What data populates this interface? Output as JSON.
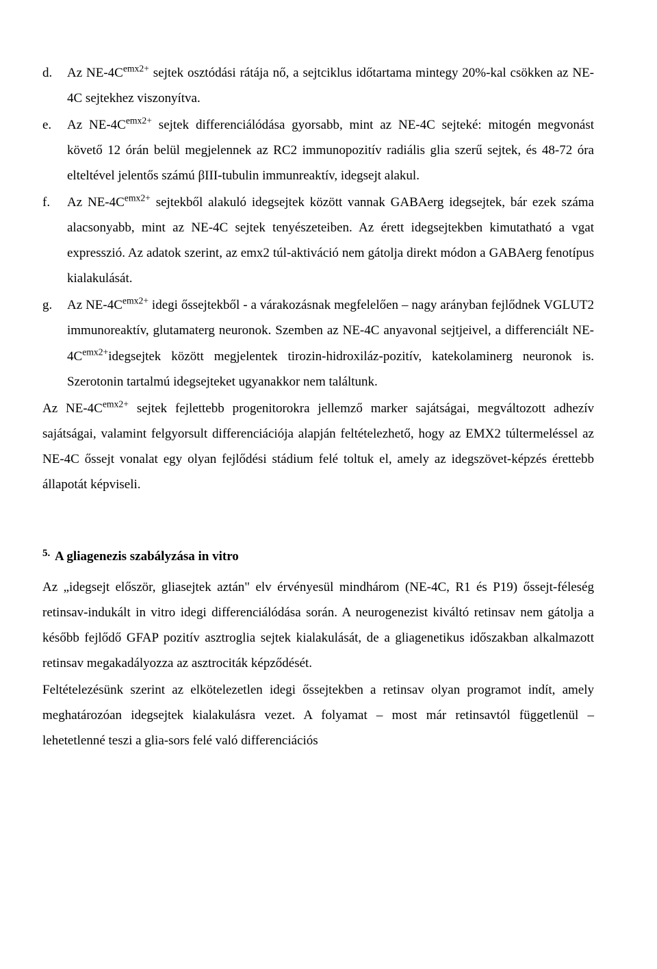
{
  "items": {
    "d": {
      "marker": "d.",
      "text": "Az NE-4C<sup>emx2+</sup> sejtek osztódási rátája nő, a sejtciklus időtartama mintegy 20%-kal csökken az NE-4C sejtekhez viszonyítva."
    },
    "e": {
      "marker": "e.",
      "text": "Az NE-4C<sup>emx2+</sup> sejtek differenciálódása gyorsabb, mint az NE-4C sejteké: mitogén megvonást követő 12 órán belül megjelennek az RC2 immunopozitív radiális glia szerű sejtek, és 48-72 óra elteltével jelentős számú βIII-tubulin immunreaktív, idegsejt alakul."
    },
    "f": {
      "marker": "f.",
      "text": "Az NE-4C<sup>emx2+</sup> sejtekből alakuló idegsejtek között vannak GABAerg idegsejtek, bár ezek száma alacsonyabb, mint az NE-4C sejtek tenyészeteiben. Az érett idegsejtekben kimutatható a vgat expresszió. Az adatok szerint, az emx2 túl-aktiváció nem gátolja direkt módon a GABAerg fenotípus kialakulását."
    },
    "g": {
      "marker": "g.",
      "text": "Az NE-4C<sup>emx2+</sup> idegi őssejtekből - a várakozásnak megfelelően – nagy arányban fejlődnek VGLUT2 immunoreaktív, glutamaterg neuronok. Szemben az NE-4C anyavonal sejtjeivel, a differenciált NE-4C<sup>emx2+</sup>idegsejtek között megjelentek tirozin-hidroxiláz-pozitív, katekolaminerg neuronok is. Szerotonin tartalmú idegsejteket ugyanakkor nem találtunk."
    }
  },
  "summary": "Az NE-4C<sup>emx2+</sup> sejtek fejlettebb progenitorokra jellemző marker sajátságai, megváltozott adhezív sajátságai, valamint felgyorsult differenciációja alapján feltételezhető, hogy az EMX2 túltermeléssel az NE-4C őssejt vonalat egy olyan fejlődési stádium felé toltuk el, amely az idegszövet-képzés érettebb állapotát képviseli.",
  "section": {
    "number": "5.",
    "title": "A gliagenezis szabályzása in vitro",
    "p1": "Az „idegsejt először, gliasejtek aztán\" elv érvényesül mindhárom (NE-4C, R1 és P19) őssejt-féleség retinsav-indukált in vitro idegi differenciálódása során. A neurogenezist kiváltó retinsav nem gátolja a később fejlődő GFAP pozitív asztroglia sejtek kialakulását, de a gliagenetikus időszakban alkalmazott retinsav megakadályozza az asztrociták képződését.",
    "p2": "Feltételezésünk szerint az elkötelezetlen idegi őssejtekben a retinsav olyan programot indít, amely meghatározóan idegsejtek kialakulásra vezet. A folyamat – most már retinsavtól függetlenül – lehetetlenné teszi a glia-sors felé való differenciációs"
  }
}
